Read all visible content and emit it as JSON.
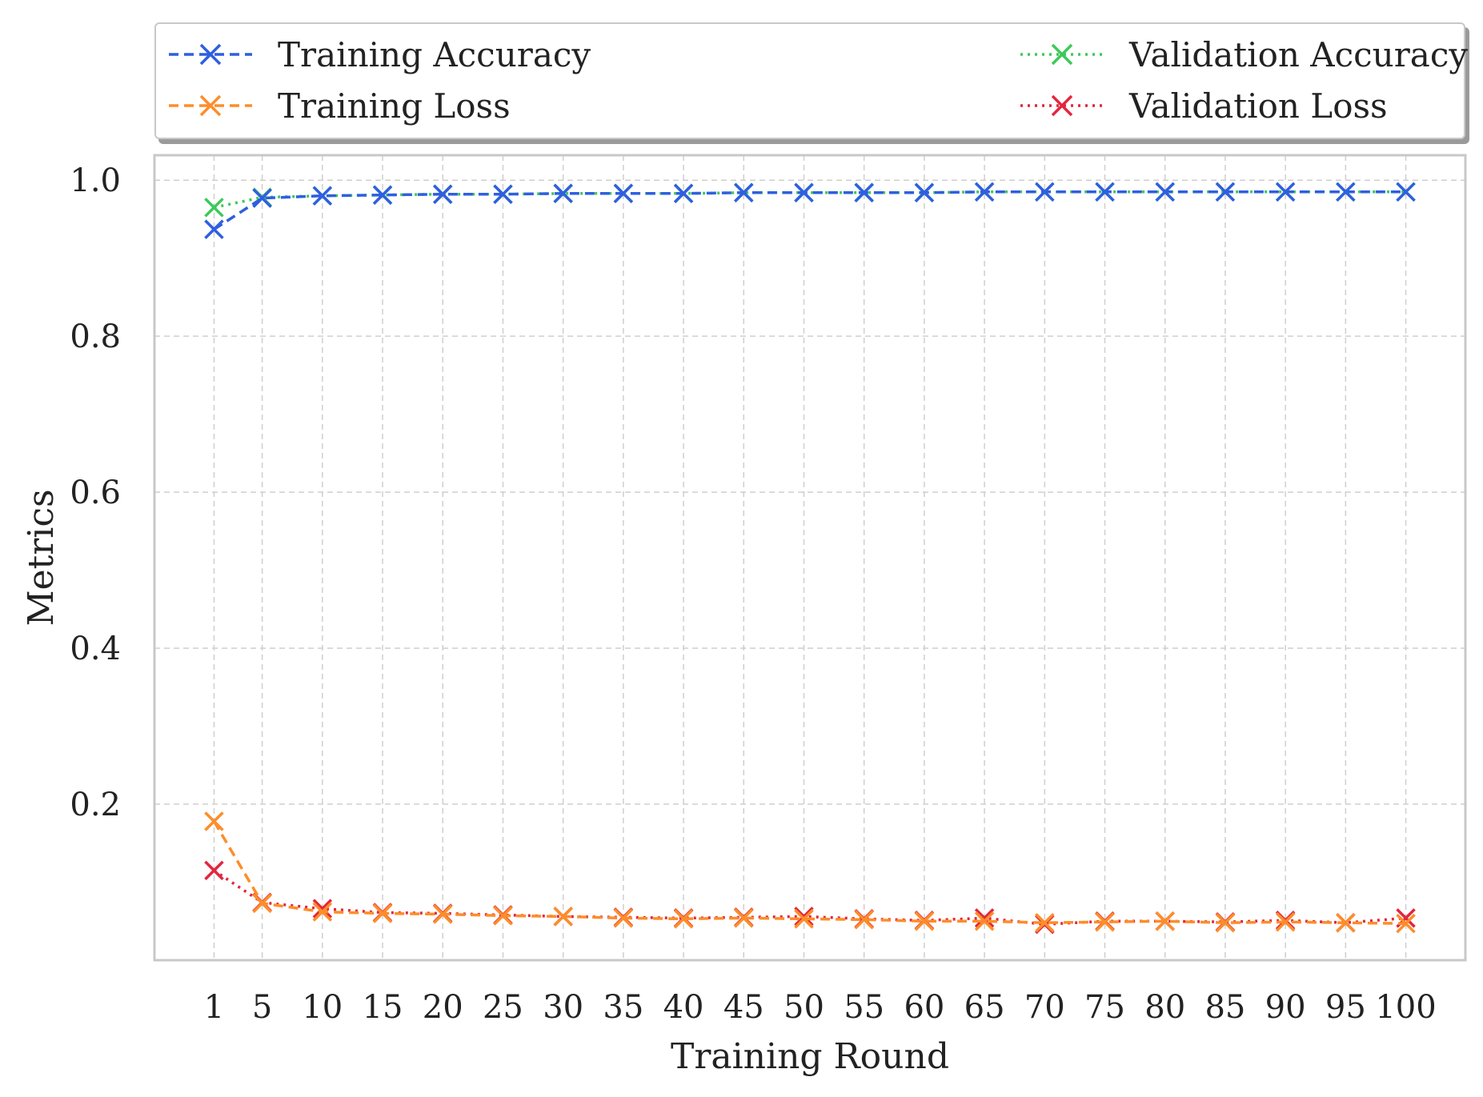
{
  "chart_data": {
    "type": "line",
    "xlabel": "Training Round",
    "ylabel": "Metrics",
    "x": [
      1,
      5,
      10,
      15,
      20,
      25,
      30,
      35,
      40,
      45,
      50,
      55,
      60,
      65,
      70,
      75,
      80,
      85,
      90,
      95,
      100
    ],
    "x_tick_labels": [
      "1",
      "5",
      "10",
      "15",
      "20",
      "25",
      "30",
      "35",
      "40",
      "45",
      "50",
      "55",
      "60",
      "65",
      "70",
      "75",
      "80",
      "85",
      "90",
      "95",
      "100"
    ],
    "y_ticks": [
      0.2,
      0.4,
      0.6,
      0.8,
      1.0
    ],
    "y_tick_labels": [
      "0.2",
      "0.4",
      "0.6",
      "0.8",
      "1.0"
    ],
    "ylim": [
      0.0,
      1.032
    ],
    "grid": true,
    "legend_position": "top (above plot, outside)",
    "series": [
      {
        "name": "Training Accuracy",
        "color": "#2f5fe0",
        "linestyle": "dashed",
        "marker": "x",
        "values": [
          0.937,
          0.977,
          0.98,
          0.981,
          0.982,
          0.982,
          0.983,
          0.983,
          0.983,
          0.984,
          0.984,
          0.984,
          0.984,
          0.985,
          0.985,
          0.985,
          0.985,
          0.985,
          0.985,
          0.985,
          0.985
        ]
      },
      {
        "name": "Validation Accuracy",
        "color": "#3dc95a",
        "linestyle": "dotted",
        "marker": "x",
        "values": [
          0.965,
          0.978,
          0.98,
          0.981,
          0.982,
          0.982,
          0.983,
          0.983,
          0.983,
          0.984,
          0.984,
          0.984,
          0.984,
          0.985,
          0.985,
          0.985,
          0.985,
          0.985,
          0.985,
          0.985,
          0.985
        ]
      },
      {
        "name": "Training Loss",
        "color": "#fd8d2a",
        "linestyle": "dashed",
        "marker": "x",
        "values": [
          0.178,
          0.073,
          0.062,
          0.06,
          0.059,
          0.057,
          0.056,
          0.054,
          0.053,
          0.054,
          0.053,
          0.052,
          0.05,
          0.05,
          0.048,
          0.049,
          0.05,
          0.048,
          0.049,
          0.048,
          0.047
        ]
      },
      {
        "name": "Validation Loss",
        "color": "#e3263d",
        "linestyle": "dotted",
        "marker": "x",
        "values": [
          0.115,
          0.074,
          0.066,
          0.061,
          0.06,
          0.058,
          0.056,
          0.055,
          0.054,
          0.055,
          0.056,
          0.053,
          0.051,
          0.054,
          0.046,
          0.05,
          0.05,
          0.049,
          0.051,
          0.048,
          0.054
        ]
      }
    ]
  },
  "legend": {
    "items": [
      {
        "label": "Training Accuracy",
        "color": "#2f5fe0",
        "linestyle": "dashed"
      },
      {
        "label": "Training Loss",
        "color": "#fd8d2a",
        "linestyle": "dashed"
      },
      {
        "label": "Validation Accuracy",
        "color": "#3dc95a",
        "linestyle": "dotted"
      },
      {
        "label": "Validation Loss",
        "color": "#e3263d",
        "linestyle": "dotted"
      }
    ]
  }
}
